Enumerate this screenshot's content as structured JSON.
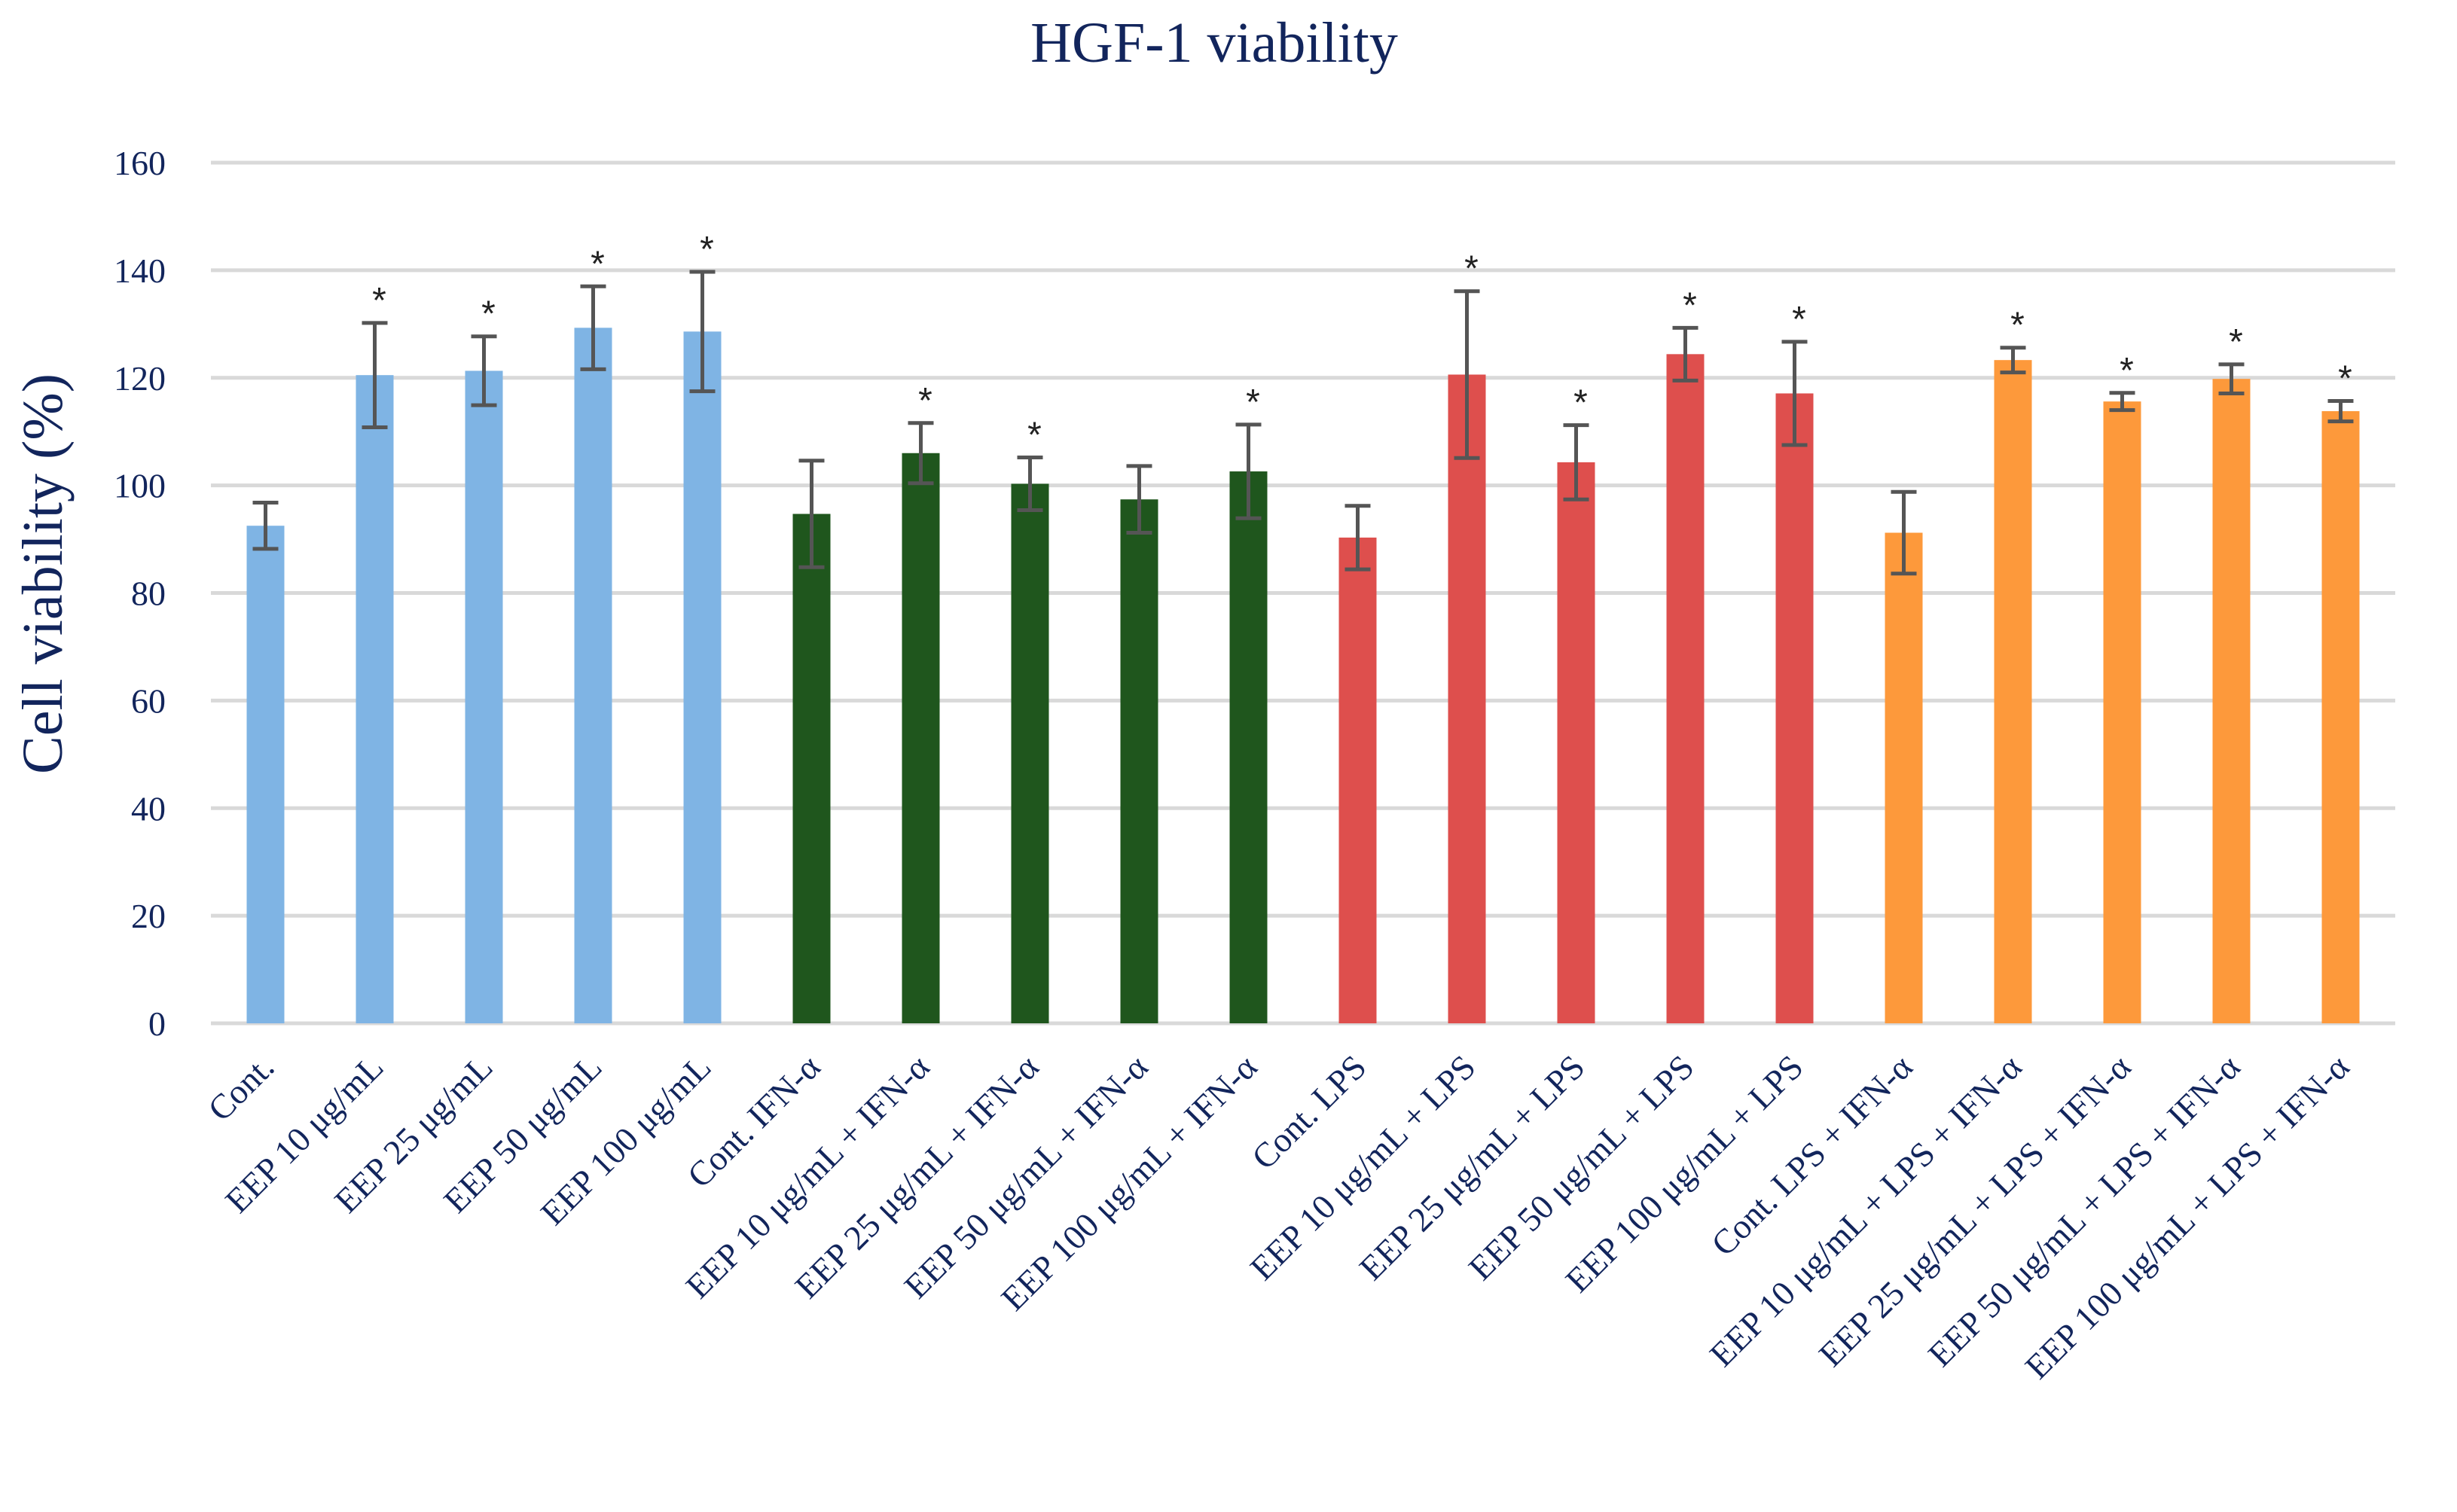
{
  "chart_data": {
    "type": "bar",
    "title": "HGF-1 viability",
    "xlabel": "",
    "ylabel": "Cell viability (%)",
    "ylim": [
      0,
      160
    ],
    "yticks": [
      0,
      20,
      40,
      60,
      80,
      100,
      120,
      140,
      160
    ],
    "grid": true,
    "significance_marker": "*",
    "group_colors": {
      "EEP": "#7fb4e4",
      "IFN": "#1f561d",
      "LPS": "#de4f4d",
      "LPS_IFN": "#fd993b"
    },
    "categories": [
      "Cont.",
      "EEP 10 μg/mL",
      "EEP 25 μg/mL",
      "EEP 50 μg/mL",
      "EEP 100 μg/mL",
      "Cont. IFN-α",
      "EEP 10 μg/mL + IFN-α",
      "EEP 25 μg/mL + IFN-α",
      "EEP 50 μg/mL + IFN-α",
      "EEP 100 μg/mL + IFN-α",
      "Cont. LPS",
      "EEP 10 μg/mL + LPS",
      "EEP 25 μg/mL + LPS",
      "EEP 50 μg/mL + LPS",
      "EEP 100 μg/mL + LPS",
      "Cont. LPS + IFN-α",
      "EEP 10 μg/mL + LPS + IFN-α",
      "EEP 25 μg/mL + LPS + IFN-α",
      "EEP 50 μg/mL + LPS + IFN-α",
      "EEP 100 μg/mL + LPS + IFN-α"
    ],
    "groups": [
      "EEP",
      "EEP",
      "EEP",
      "EEP",
      "EEP",
      "IFN",
      "IFN",
      "IFN",
      "IFN",
      "IFN",
      "LPS",
      "LPS",
      "LPS",
      "LPS",
      "LPS",
      "LPS_IFN",
      "LPS_IFN",
      "LPS_IFN",
      "LPS_IFN",
      "LPS_IFN"
    ],
    "values": [
      92.5,
      120.5,
      121.3,
      129.3,
      128.6,
      94.7,
      106.0,
      100.3,
      97.4,
      102.6,
      90.3,
      120.6,
      104.3,
      124.4,
      117.1,
      91.2,
      123.3,
      115.6,
      119.8,
      113.8
    ],
    "errors": [
      4.3,
      9.7,
      6.4,
      7.7,
      11.1,
      9.9,
      5.6,
      4.9,
      6.2,
      8.7,
      5.9,
      15.5,
      6.9,
      4.9,
      9.6,
      7.6,
      2.3,
      1.6,
      2.7,
      1.9
    ],
    "significant": [
      false,
      true,
      true,
      true,
      true,
      false,
      true,
      true,
      false,
      true,
      false,
      true,
      true,
      true,
      true,
      false,
      true,
      true,
      true,
      true
    ]
  }
}
